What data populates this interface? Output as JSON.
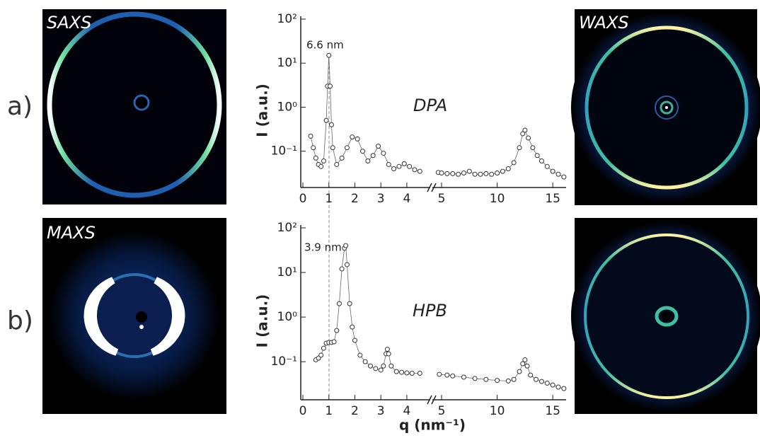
{
  "panels": [
    {
      "label": "a)",
      "left_image": "SAXS",
      "right_image": "WAXS"
    },
    {
      "label": "b)",
      "left_image": "MAXS"
    }
  ],
  "chart_data": [
    {
      "type": "scatter",
      "annotation": "6.6 nm",
      "sample": "DPA",
      "ylabel": "I (a.u.)",
      "x": [
        0.3,
        0.4,
        0.5,
        0.6,
        0.7,
        0.8,
        0.9,
        0.95,
        1.0,
        1.05,
        1.1,
        1.15,
        1.3,
        1.5,
        1.7,
        1.9,
        2.1,
        2.3,
        2.5,
        2.7,
        2.9,
        3.1,
        3.3,
        3.5,
        3.7,
        3.9,
        4.1,
        4.3,
        4.5,
        4.7,
        5,
        5.5,
        6,
        6.5,
        7,
        7.5,
        8,
        8.5,
        9,
        9.5,
        10,
        10.5,
        11,
        11.5,
        12,
        12.3,
        12.5,
        12.8,
        13.2,
        13.6,
        14,
        14.5,
        15,
        15.5,
        16
      ],
      "values": [
        0.22,
        0.12,
        0.07,
        0.05,
        0.045,
        0.06,
        0.5,
        3,
        15,
        3,
        0.4,
        0.12,
        0.05,
        0.07,
        0.12,
        0.21,
        0.19,
        0.1,
        0.06,
        0.08,
        0.13,
        0.09,
        0.05,
        0.04,
        0.045,
        0.052,
        0.045,
        0.038,
        0.035,
        0.033,
        0.032,
        0.031,
        0.031,
        0.03,
        0.032,
        0.035,
        0.03,
        0.03,
        0.031,
        0.03,
        0.032,
        0.035,
        0.04,
        0.055,
        0.12,
        0.25,
        0.3,
        0.2,
        0.12,
        0.08,
        0.06,
        0.045,
        0.035,
        0.03,
        0.026
      ],
      "color": "#333333",
      "log_y": true,
      "ylim": [
        0.015,
        100
      ],
      "yticks": [
        {
          "value": 0.1,
          "label": "10⁻¹"
        },
        {
          "value": 1,
          "label": "10⁰"
        },
        {
          "value": 10,
          "label": "10¹"
        },
        {
          "value": 100,
          "label": "10²"
        }
      ],
      "x_segments": [
        [
          0,
          4.9
        ],
        [
          4.3,
          16.2
        ]
      ],
      "x_break": 4.6,
      "xticks": [
        0,
        1,
        2,
        3,
        4,
        5,
        10,
        15
      ]
    },
    {
      "type": "scatter",
      "annotation": "3.9 nm",
      "sample": "HPB",
      "ylabel": "I (a.u.)",
      "xlabel": "q (nm⁻¹)",
      "x": [
        0.5,
        0.6,
        0.7,
        0.8,
        0.9,
        1.0,
        1.1,
        1.2,
        1.3,
        1.4,
        1.5,
        1.6,
        1.65,
        1.7,
        1.8,
        1.9,
        2.0,
        2.2,
        2.4,
        2.6,
        2.8,
        3.0,
        3.1,
        3.2,
        3.25,
        3.3,
        3.4,
        3.6,
        3.8,
        4.0,
        4.2,
        4.5,
        4.8,
        5.5,
        6,
        7,
        8,
        9,
        10,
        11,
        11.5,
        12,
        12.3,
        12.5,
        12.7,
        13,
        13.5,
        14,
        14.5,
        15,
        15.5,
        16
      ],
      "values": [
        0.11,
        0.12,
        0.14,
        0.2,
        0.26,
        0.27,
        0.27,
        0.28,
        0.5,
        2,
        12,
        35,
        40,
        15,
        2,
        0.6,
        0.3,
        0.14,
        0.1,
        0.08,
        0.07,
        0.065,
        0.08,
        0.15,
        0.19,
        0.15,
        0.08,
        0.06,
        0.058,
        0.056,
        0.055,
        0.055,
        0.052,
        0.05,
        0.048,
        0.045,
        0.042,
        0.04,
        0.038,
        0.037,
        0.04,
        0.06,
        0.09,
        0.11,
        0.08,
        0.05,
        0.04,
        0.036,
        0.033,
        0.03,
        0.027,
        0.025
      ],
      "color": "#333333",
      "log_y": true,
      "ylim": [
        0.014,
        100
      ],
      "yticks": [
        {
          "value": 0.1,
          "label": "10⁻¹"
        },
        {
          "value": 1,
          "label": "10⁰"
        },
        {
          "value": 10,
          "label": "10¹"
        },
        {
          "value": 100,
          "label": "10²"
        }
      ],
      "x_segments": [
        [
          0,
          4.9
        ],
        [
          4.3,
          16.2
        ]
      ],
      "x_break": 4.6,
      "xticks": [
        0,
        1,
        2,
        3,
        4,
        5,
        10,
        15
      ]
    }
  ]
}
